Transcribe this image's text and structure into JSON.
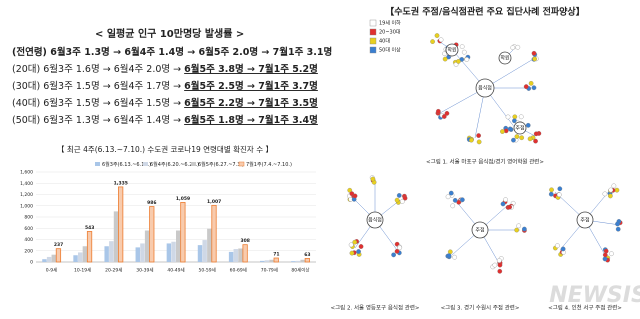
{
  "incidence": {
    "title": "< 일평균 인구 10만명당 발생률 >",
    "rows": [
      [
        "(전연령) 6월3주 1.3명 → 6월4주 1.4명 → 6월5주 2.0명 → 7월1주 3.1명",
        ""
      ],
      [
        "(20대) 6월3주 1.6명 → 6월4주 2.0명 → ",
        "6월5주 3.8명 → 7월1주 5.2명"
      ],
      [
        "(30대) 6월3주 1.5명 → 6월4주 1.7명 → ",
        "6월5주 2.5명 → 7월1주 3.7명"
      ],
      [
        "(40대) 6월3주 1.5명 → 6월4주 1.5명 → ",
        "6월5주 2.2명 → 7월1주 3.5명"
      ],
      [
        "(50대) 6월3주 1.3명 → 6월4주 1.4명 → ",
        "6월5주 1.8명 → 7월1주 3.4명"
      ]
    ]
  },
  "chart_data": {
    "type": "bar",
    "title": "【 최근 4주(6.13.~7.10.) 수도권 코로나19 연령대별 확진자 수 】",
    "categories": [
      "0-9세",
      "10-19세",
      "20-29세",
      "30-39세",
      "40-49세",
      "50-59세",
      "60-69세",
      "70-79세",
      "80세이상"
    ],
    "series": [
      {
        "name": "6월3주(6.13.~6.19.)",
        "color": "#a9c6e8",
        "values": [
          50,
          120,
          280,
          260,
          330,
          300,
          180,
          20,
          15
        ]
      },
      {
        "name": "6월4주(6.20.~6.26.)",
        "color": "#cfd8e6",
        "values": [
          90,
          170,
          370,
          330,
          360,
          390,
          230,
          30,
          20
        ]
      },
      {
        "name": "6월5주(6.27.~7.3.)",
        "color": "#c9c9c9",
        "values": [
          130,
          280,
          900,
          560,
          560,
          590,
          240,
          40,
          40
        ]
      },
      {
        "name": "7월1주(7.4.~7.10.)",
        "color": "#f8cbad",
        "values": [
          237,
          543,
          1335,
          986,
          1059,
          1007,
          308,
          71,
          63
        ],
        "value_labels": [
          "237",
          "543",
          "1,335",
          "986",
          "1,059",
          "1,007",
          "308",
          "71",
          "63"
        ]
      }
    ],
    "ylim": [
      0,
      1600
    ],
    "yticks": [
      0,
      200,
      400,
      600,
      800,
      {
        "value": 1000,
        "label": "1,000"
      },
      {
        "value": 1200,
        "label": "1,200"
      },
      {
        "value": 1400,
        "label": "1,400"
      },
      {
        "value": 1600,
        "label": "1,600"
      }
    ],
    "grid": true
  },
  "network": {
    "title": "【수도권 주점/음식점관련 주요 집단사례 전파양상】",
    "legend": [
      {
        "label": "19세 이하",
        "color": "#ffffff"
      },
      {
        "label": "20~30대",
        "color": "#e03030"
      },
      {
        "label": "40대",
        "color": "#e8d020"
      },
      {
        "label": "50대 이상",
        "color": "#3a7fd0"
      }
    ],
    "figures": [
      {
        "caption": "<그림 1. 서울 마포구 음식점/경기 영어학원 관련>",
        "labels": [
          "음식점",
          "학원",
          "학원",
          "주점"
        ]
      },
      {
        "caption": "<그림 2. 서울 영등포구 음식점 관련>",
        "labels": [
          "음식점"
        ]
      },
      {
        "caption": "<그림 3. 경기 수원시 주점 관련>",
        "labels": [
          "주점"
        ]
      },
      {
        "caption": "<그림 4. 인천 서구 주점 관련>",
        "labels": [
          "주점"
        ]
      }
    ],
    "watermark": "NEWSIS"
  }
}
